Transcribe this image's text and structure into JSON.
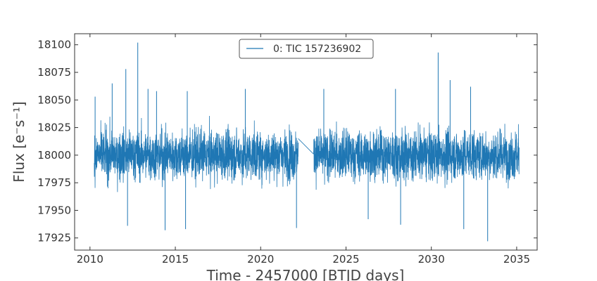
{
  "chart_data": {
    "type": "line",
    "title": "",
    "xlabel": "Time - 2457000 [BTJD days]",
    "ylabel": "Flux [e⁻s⁻¹]",
    "xlim": [
      2009.1,
      2036.2
    ],
    "ylim": [
      17914,
      18110
    ],
    "x_ticks": [
      2010,
      2015,
      2020,
      2025,
      2030,
      2035
    ],
    "y_ticks": [
      17925,
      17950,
      17975,
      18000,
      18025,
      18050,
      18075,
      18100
    ],
    "x_tick_labels": [
      "2010",
      "2015",
      "2020",
      "2025",
      "2030",
      "2035"
    ],
    "y_tick_labels": [
      "17925",
      "17950",
      "17975",
      "18000",
      "18025",
      "18050",
      "18075",
      "18100"
    ],
    "grid": false,
    "legend_position": "top-center",
    "series": [
      {
        "name": "0: TIC 157236902",
        "color": "#1f77b4",
        "baseline": 18000,
        "band": [
          17975,
          18025
        ],
        "segments": [
          [
            2010.25,
            2022.2
          ],
          [
            2023.1,
            2035.15
          ]
        ],
        "gap_connector": [
          [
            2022.2,
            18015
          ],
          [
            2023.1,
            18001
          ]
        ],
        "envelope": {
          "upper_typical": 18050,
          "lower_typical": 17955,
          "spikes": [
            {
              "x": 2010.3,
              "y": 18053
            },
            {
              "x": 2011.3,
              "y": 18065
            },
            {
              "x": 2012.1,
              "y": 18078
            },
            {
              "x": 2012.8,
              "y": 18102
            },
            {
              "x": 2013.4,
              "y": 18060
            },
            {
              "x": 2013.9,
              "y": 18058
            },
            {
              "x": 2015.7,
              "y": 18058
            },
            {
              "x": 2019.1,
              "y": 18060
            },
            {
              "x": 2023.7,
              "y": 18060
            },
            {
              "x": 2027.9,
              "y": 18060
            },
            {
              "x": 2030.4,
              "y": 18093
            },
            {
              "x": 2031.1,
              "y": 18068
            },
            {
              "x": 2032.3,
              "y": 18062
            },
            {
              "x": 2012.2,
              "y": 17936
            },
            {
              "x": 2014.4,
              "y": 17932
            },
            {
              "x": 2015.6,
              "y": 17933
            },
            {
              "x": 2022.1,
              "y": 17934
            },
            {
              "x": 2028.2,
              "y": 17937
            },
            {
              "x": 2031.9,
              "y": 17933
            },
            {
              "x": 2033.3,
              "y": 17922
            },
            {
              "x": 2026.3,
              "y": 17942
            }
          ]
        }
      }
    ]
  }
}
